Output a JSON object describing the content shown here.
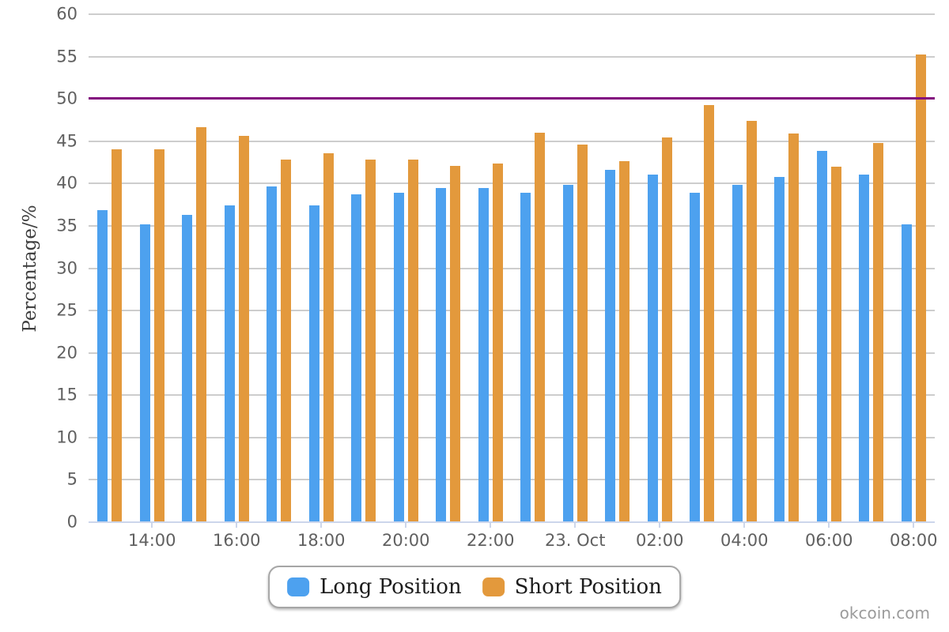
{
  "chart_data": {
    "type": "bar",
    "title": "",
    "xlabel": "",
    "ylabel": "Percentage/%",
    "ylim": [
      0,
      60
    ],
    "grid": true,
    "legend_position": "bottom",
    "plotline_y": 50,
    "y_tick_labels": [
      "0",
      "5",
      "10",
      "15",
      "20",
      "25",
      "30",
      "35",
      "40",
      "45",
      "50",
      "55",
      "60"
    ],
    "categories": [
      "",
      "14:00",
      "",
      "16:00",
      "",
      "18:00",
      "",
      "20:00",
      "",
      "22:00",
      "",
      "23. Oct",
      "",
      "02:00",
      "",
      "04:00",
      "",
      "06:00",
      "",
      "08:00"
    ],
    "series": [
      {
        "name": "Long Position",
        "color": "#4DA1EF",
        "values": [
          36.9,
          35.2,
          36.3,
          37.4,
          39.7,
          37.4,
          38.7,
          38.9,
          39.5,
          39.5,
          38.9,
          39.8,
          41.6,
          41.1,
          38.9,
          39.8,
          40.8,
          43.9,
          41.1,
          35.2
        ]
      },
      {
        "name": "Short Position",
        "color": "#E3993C",
        "values": [
          44.0,
          44.0,
          46.7,
          45.6,
          42.8,
          43.6,
          42.8,
          42.8,
          42.1,
          42.4,
          46.0,
          44.6,
          42.6,
          45.4,
          49.3,
          47.4,
          45.9,
          42.0,
          44.8,
          55.2
        ]
      }
    ]
  },
  "colors": {
    "grid": "#CDCDCD",
    "axis": "#CCD6EB",
    "plotline": "#830B7E",
    "tick_label": "#606060"
  },
  "watermark": "okcoin.com"
}
